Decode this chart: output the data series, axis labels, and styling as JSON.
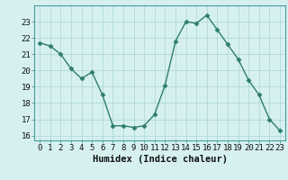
{
  "x": [
    0,
    1,
    2,
    3,
    4,
    5,
    6,
    7,
    8,
    9,
    10,
    11,
    12,
    13,
    14,
    15,
    16,
    17,
    18,
    19,
    20,
    21,
    22,
    23
  ],
  "y": [
    21.7,
    21.5,
    21.0,
    20.1,
    19.5,
    19.9,
    18.5,
    16.6,
    16.6,
    16.5,
    16.6,
    17.3,
    19.1,
    21.8,
    23.0,
    22.9,
    23.4,
    22.5,
    21.6,
    20.7,
    19.4,
    18.5,
    17.0,
    16.3
  ],
  "line_color": "#2e7d6e",
  "marker": "D",
  "marker_size": 2.5,
  "bg_color": "#d6f0f0",
  "grid_color": "#aad4d4",
  "xlabel": "Humidex (Indice chaleur)",
  "xlim": [
    -0.5,
    23.5
  ],
  "ylim": [
    15.7,
    24.0
  ],
  "yticks": [
    16,
    17,
    18,
    19,
    20,
    21,
    22,
    23
  ],
  "xticks": [
    0,
    1,
    2,
    3,
    4,
    5,
    6,
    7,
    8,
    9,
    10,
    11,
    12,
    13,
    14,
    15,
    16,
    17,
    18,
    19,
    20,
    21,
    22,
    23
  ],
  "xlabel_fontsize": 7.5,
  "tick_fontsize": 6.5,
  "line_width": 1.0,
  "spine_color": "#4a9a9a"
}
